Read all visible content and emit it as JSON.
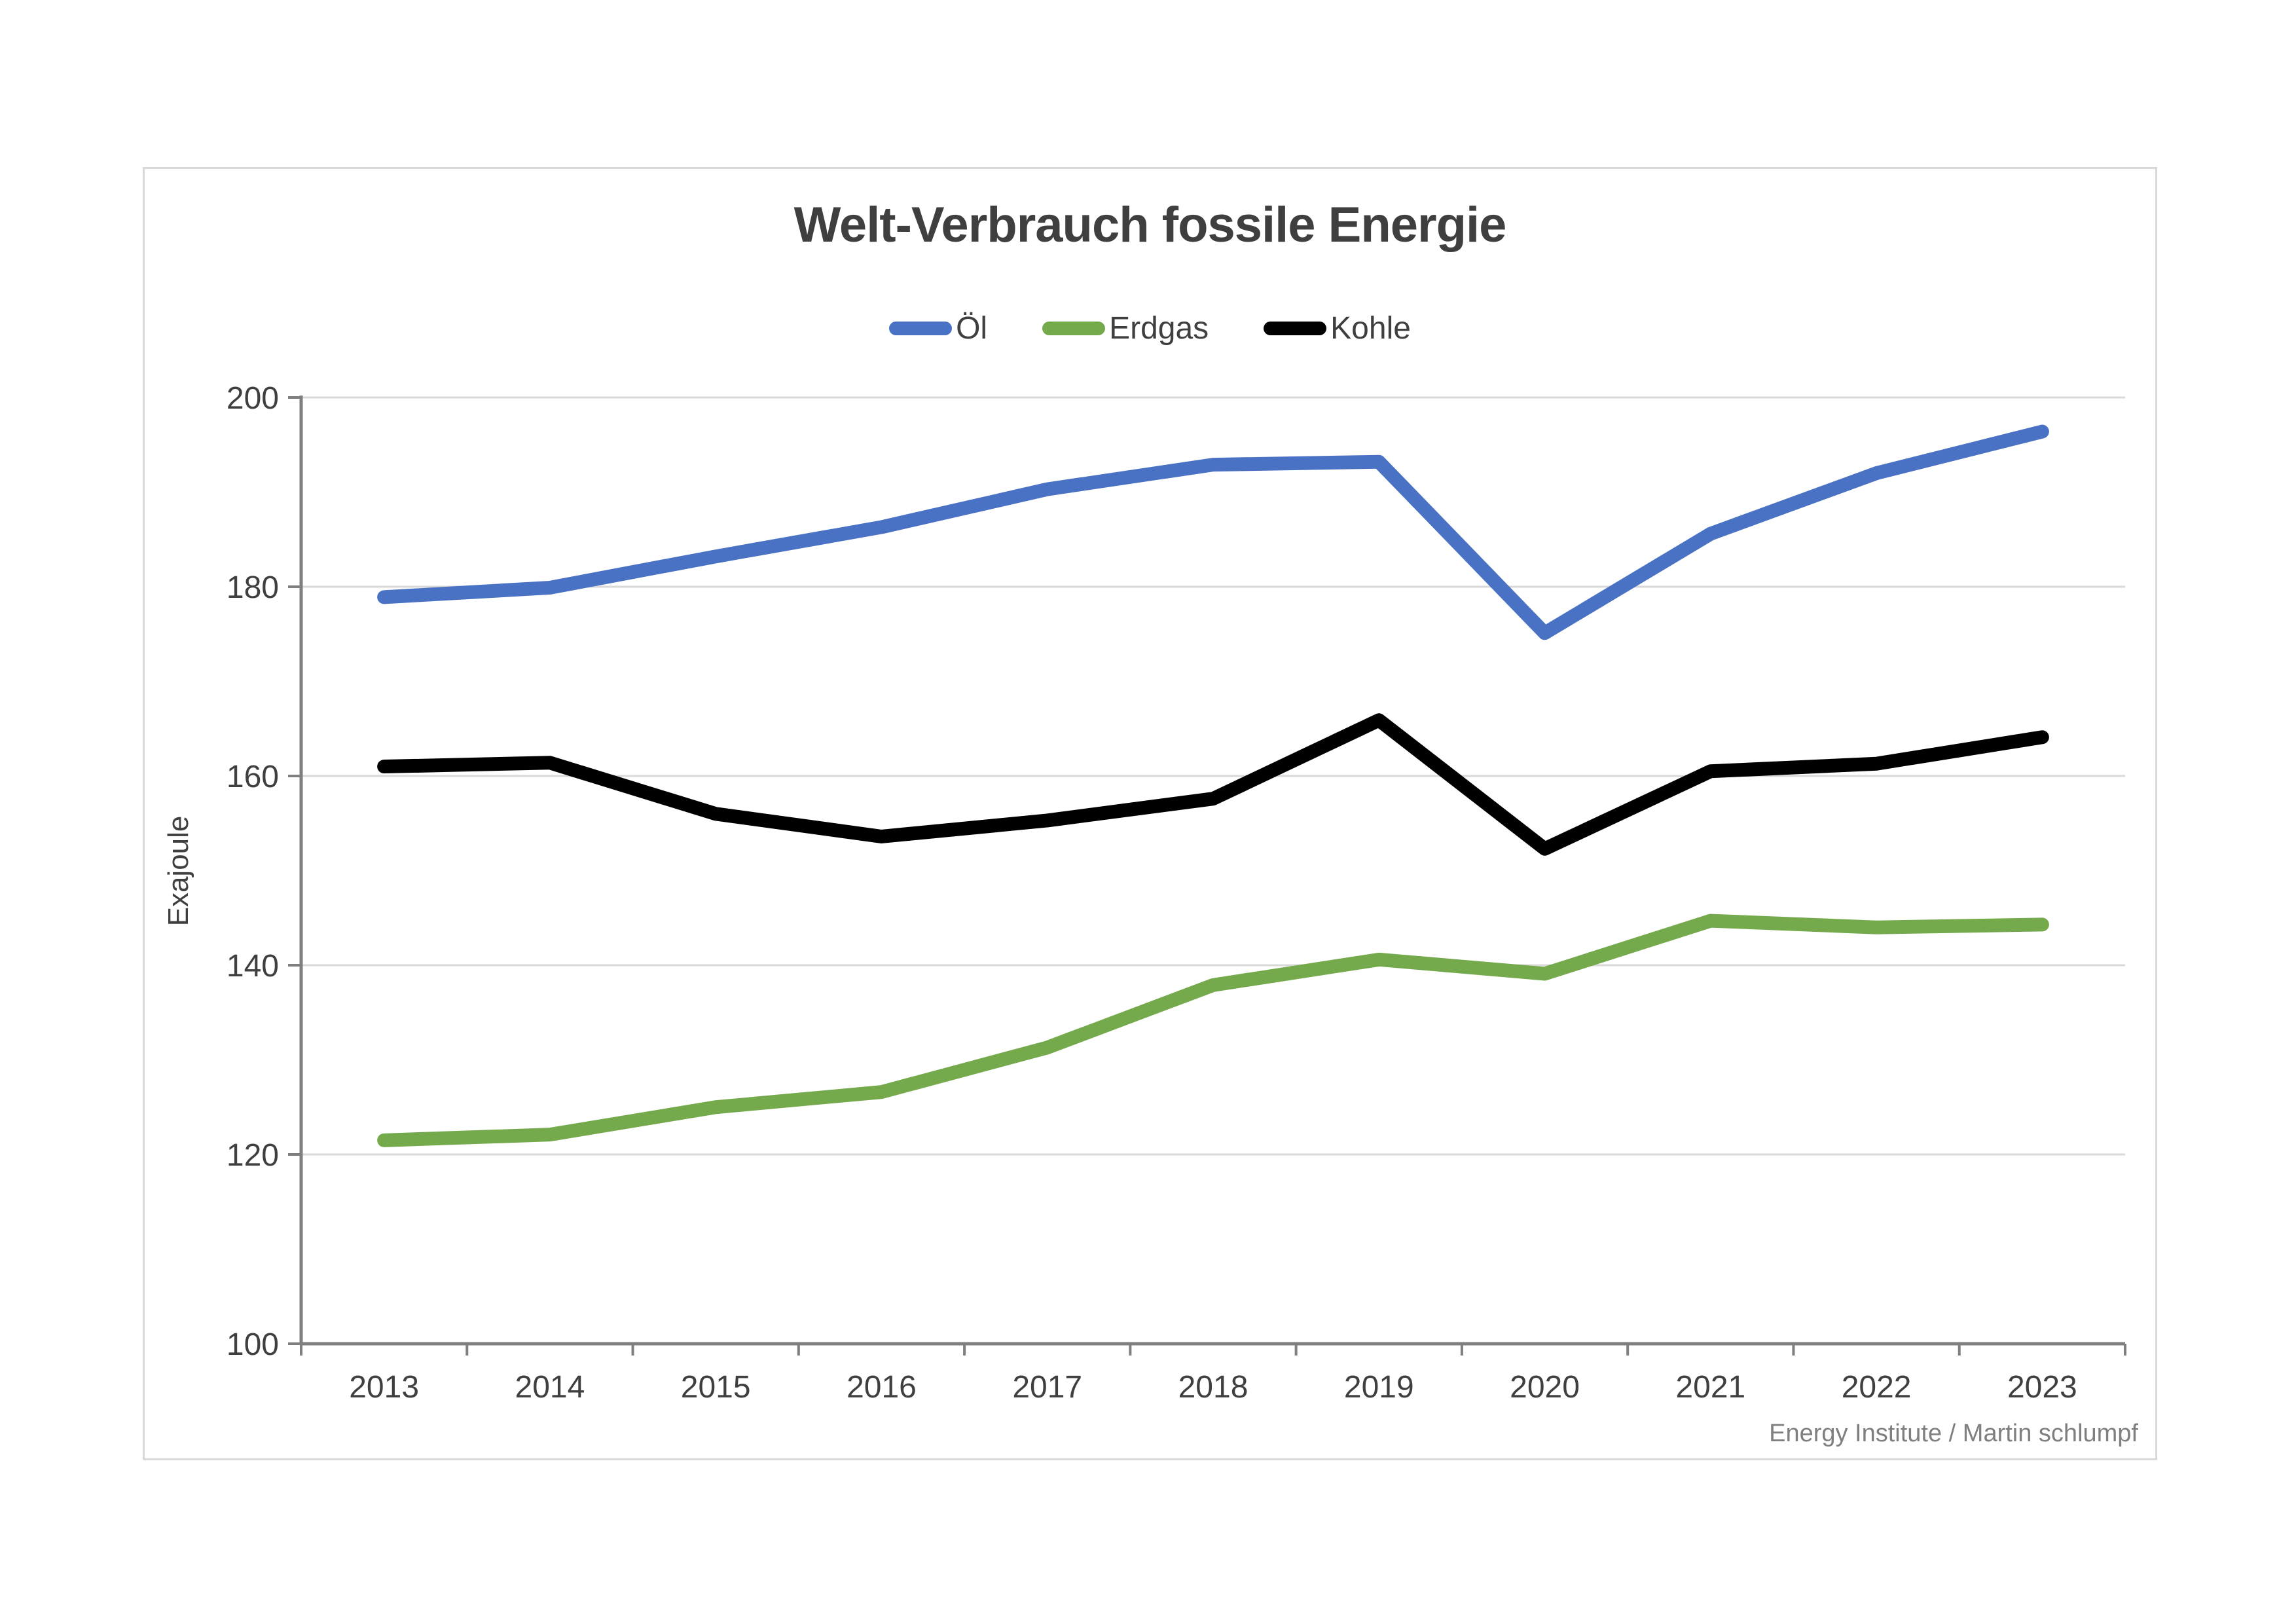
{
  "chart": {
    "title": "Welt-Verbrauch fossile Energie",
    "source": "Energy Institute / Martin schlumpf"
  },
  "chart_data": {
    "type": "line",
    "title": "Welt-Verbrauch fossile Energie",
    "categories": [
      "2013",
      "2014",
      "2015",
      "2016",
      "2017",
      "2018",
      "2019",
      "2020",
      "2021",
      "2022",
      "2023"
    ],
    "series": [
      {
        "name": "Öl",
        "color": "#4a72c4",
        "values": [
          178.9,
          179.9,
          183.2,
          186.3,
          190.3,
          192.9,
          193.2,
          175.1,
          185.6,
          192.0,
          196.4
        ]
      },
      {
        "name": "Erdgas",
        "color": "#74a94c",
        "values": [
          121.5,
          122.1,
          125.0,
          126.6,
          131.3,
          137.9,
          140.6,
          139.1,
          144.7,
          144.0,
          144.3
        ]
      },
      {
        "name": "Kohle",
        "color": "#000000",
        "values": [
          161.0,
          161.4,
          156.0,
          153.6,
          155.3,
          157.6,
          165.9,
          152.3,
          160.5,
          161.3,
          164.1
        ]
      }
    ],
    "xlabel": "",
    "ylabel": "Exajoule",
    "ylim": [
      100,
      200
    ],
    "yticks": [
      100,
      120,
      140,
      160,
      180,
      200
    ],
    "grid": true,
    "legend_position": "top",
    "source": "Energy Institute / Martin schlumpf",
    "colors": {
      "grid": "#d9d9d9",
      "axis": "#7f7f7f",
      "text": "#3f3f3f",
      "muted": "#7f7f7f"
    }
  }
}
